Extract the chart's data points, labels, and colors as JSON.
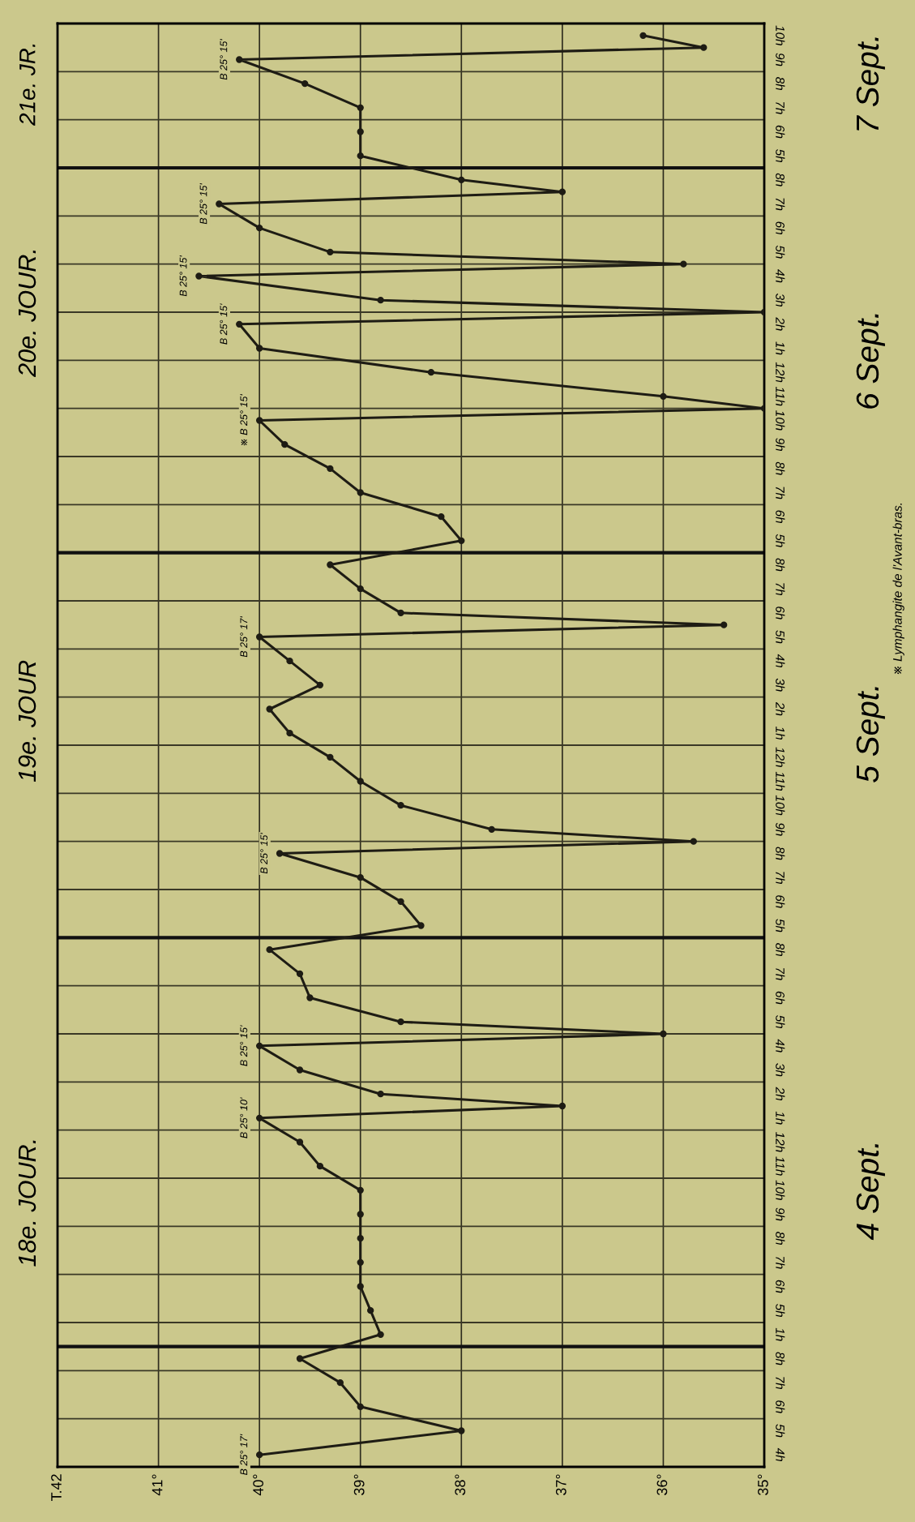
{
  "chart_data": {
    "type": "line",
    "orientation": "horizontal",
    "xlim": [
      42,
      35
    ],
    "xticks": [
      {
        "value": 42,
        "label": "T.42"
      },
      {
        "value": 41,
        "label": "41°"
      },
      {
        "value": 40,
        "label": "40°"
      },
      {
        "value": 39,
        "label": "39°"
      },
      {
        "value": 38,
        "label": "38°"
      },
      {
        "value": 37,
        "label": "37°"
      },
      {
        "value": 36,
        "label": "36°"
      },
      {
        "value": 35,
        "label": "35°"
      }
    ],
    "categories": [
      "10h",
      null,
      "9h",
      "8h",
      "7h",
      "6h",
      "5h",
      "8h",
      null,
      "7h",
      "6h",
      "5h",
      null,
      "4h",
      "3h",
      null,
      "2h",
      "1h",
      "12h",
      "11h",
      null,
      "10h",
      "9h",
      "8h",
      "7h",
      "6h",
      "5h",
      "8h",
      "7h",
      "6h",
      null,
      "5h",
      "4h",
      "3h",
      "2h",
      "1h",
      "12h",
      "11h",
      "10h",
      "9h",
      null,
      "8h",
      "7h",
      "6h",
      "5h",
      "8h",
      "7h",
      "6h",
      "5h",
      null,
      "4h",
      "3h",
      "2h",
      null,
      "1h",
      "12h",
      "11h",
      "10h",
      "9h",
      "8h",
      "7h",
      "6h",
      "5h",
      "1h",
      "8h",
      "7h",
      "6h",
      "5h",
      "4h"
    ],
    "grid": "x",
    "marker": "circle",
    "line_style": "solid",
    "series": [
      {
        "color": "#1e1c14",
        "values": [
          36.2,
          35.6,
          40.2,
          39.55,
          39.0,
          39.0,
          39.0,
          38.0,
          37.0,
          40.4,
          40.0,
          39.3,
          35.8,
          40.6,
          38.8,
          35.0,
          40.2,
          40.0,
          38.3,
          36.0,
          35.0,
          40.0,
          39.75,
          39.3,
          39.0,
          38.2,
          38.0,
          39.3,
          39.0,
          38.6,
          35.4,
          40.0,
          39.7,
          39.4,
          39.9,
          39.7,
          39.3,
          39.0,
          38.6,
          37.7,
          35.7,
          39.8,
          39.0,
          38.6,
          38.4,
          39.9,
          39.6,
          39.5,
          38.6,
          36.0,
          40.0,
          39.6,
          38.8,
          37.0,
          40.0,
          39.6,
          39.4,
          39.0,
          39.0,
          39.0,
          39.0,
          39.0,
          38.9,
          38.8,
          39.6,
          39.2,
          39.0,
          38.0,
          40.0
        ],
        "value_labels": [
          null,
          null,
          "B 25° 15'",
          null,
          null,
          null,
          null,
          null,
          null,
          "B 25° 15'",
          null,
          null,
          null,
          "B 25° 15'",
          null,
          null,
          "B 25° 15'",
          null,
          null,
          null,
          null,
          "※ B 25° 15'",
          null,
          null,
          null,
          null,
          null,
          null,
          null,
          null,
          null,
          "B 25° 17'",
          null,
          null,
          null,
          null,
          null,
          null,
          null,
          null,
          null,
          "B 25° 15'",
          null,
          null,
          null,
          null,
          null,
          null,
          null,
          null,
          "B 25° 15'",
          null,
          null,
          null,
          "B 25° 10'",
          null,
          null,
          null,
          null,
          null,
          null,
          null,
          null,
          null,
          null,
          null,
          null,
          null,
          "B 25° 17'"
        ]
      }
    ],
    "annotations": [
      "18e. JOUR.",
      "19e. JOUR",
      "20e. JOUR.",
      "21e. JR.",
      "4 Sept.",
      "5 Sept.",
      "6 Sept.",
      "7 Sept.",
      "※ Lymphangite de l'Avant-bras."
    ]
  }
}
